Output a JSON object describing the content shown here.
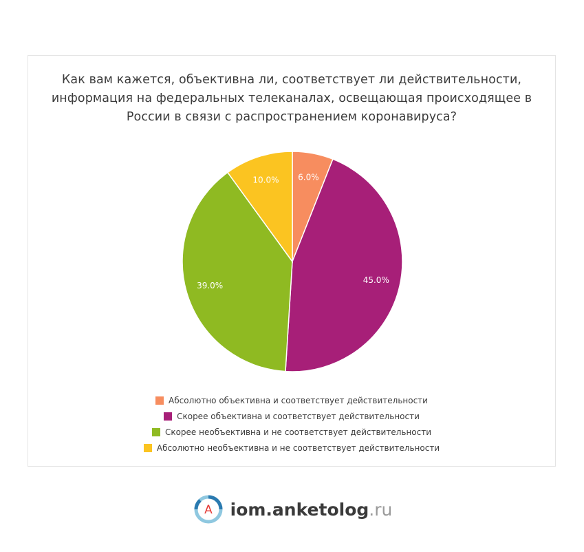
{
  "chart_data": {
    "type": "pie",
    "title": "Как вам кажется, объективна ли, соответствует ли действительности, информация на федеральных телеканалах, освещающая происходящее в России в связи с распространением коронавируса?",
    "categories": [
      "Абсолютно объективна и соответствует действительности",
      "Скорее объективна и соответствует действительности",
      "Скорее необъективна и не соответствует действительности",
      "Абсолютно необъективна и не соответствует действительности"
    ],
    "values": [
      6.0,
      45.0,
      39.0,
      10.0
    ],
    "data_labels": [
      "6.0%",
      "45.0%",
      "39.0%",
      "10.0%"
    ],
    "colors": [
      "#f78d5f",
      "#a71f78",
      "#8fba22",
      "#fbc421"
    ],
    "legend_position": "bottom",
    "start_angle": "top, clockwise"
  },
  "footer": {
    "logo_letter": "A",
    "brand_main": "iom.anketolog",
    "brand_tld": ".ru"
  }
}
